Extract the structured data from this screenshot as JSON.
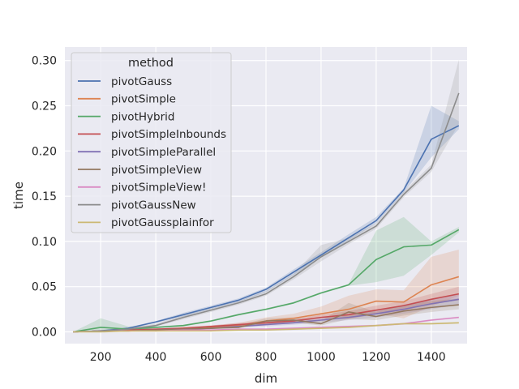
{
  "chart_data": {
    "type": "line",
    "xlabel": "dim",
    "ylabel": "time",
    "xlim": [
      70,
      1530
    ],
    "ylim": [
      -0.013,
      0.315
    ],
    "xticks": [
      200,
      400,
      600,
      800,
      1000,
      1200,
      1400
    ],
    "yticks": [
      0.0,
      0.05,
      0.1,
      0.15,
      0.2,
      0.25,
      0.3
    ],
    "ytick_labels": [
      "0.00",
      "0.05",
      "0.10",
      "0.15",
      "0.20",
      "0.25",
      "0.30"
    ],
    "grid": true,
    "legend": {
      "title": "method",
      "placement": "top-left"
    },
    "x": [
      100,
      200,
      300,
      400,
      500,
      600,
      700,
      800,
      900,
      1000,
      1100,
      1200,
      1300,
      1400,
      1500
    ],
    "series": [
      {
        "name": "pivotGauss",
        "color": "#4c72b0",
        "values": [
          0.0,
          0.001,
          0.004,
          0.011,
          0.019,
          0.027,
          0.035,
          0.047,
          0.066,
          0.085,
          0.104,
          0.123,
          0.157,
          0.213,
          0.228
        ],
        "lower": [
          0.0,
          0.001,
          0.003,
          0.01,
          0.017,
          0.025,
          0.033,
          0.044,
          0.063,
          0.082,
          0.101,
          0.12,
          0.154,
          0.193,
          0.224
        ],
        "upper": [
          0.0,
          0.002,
          0.005,
          0.012,
          0.021,
          0.029,
          0.037,
          0.049,
          0.069,
          0.088,
          0.108,
          0.127,
          0.159,
          0.25,
          0.233
        ]
      },
      {
        "name": "pivotSimple",
        "color": "#dd8452",
        "values": [
          0.0,
          0.001,
          0.001,
          0.002,
          0.004,
          0.005,
          0.007,
          0.012,
          0.015,
          0.02,
          0.025,
          0.034,
          0.033,
          0.052,
          0.061
        ],
        "lower": [
          0.0,
          0.0,
          0.001,
          0.001,
          0.003,
          0.004,
          0.005,
          0.009,
          0.011,
          0.015,
          0.014,
          0.02,
          0.015,
          0.028,
          0.04
        ],
        "upper": [
          0.0,
          0.002,
          0.002,
          0.003,
          0.006,
          0.007,
          0.01,
          0.016,
          0.02,
          0.028,
          0.04,
          0.047,
          0.046,
          0.083,
          0.091
        ]
      },
      {
        "name": "pivotHybrid",
        "color": "#55a868",
        "values": [
          0.0,
          0.005,
          0.003,
          0.005,
          0.007,
          0.012,
          0.019,
          0.025,
          0.032,
          0.043,
          0.052,
          0.08,
          0.094,
          0.096,
          0.113
        ],
        "lower": [
          0.0,
          0.0,
          0.002,
          0.004,
          0.006,
          0.011,
          0.018,
          0.024,
          0.031,
          0.042,
          0.051,
          0.055,
          0.062,
          0.085,
          0.11
        ],
        "upper": [
          0.0,
          0.015,
          0.006,
          0.006,
          0.008,
          0.013,
          0.02,
          0.026,
          0.033,
          0.044,
          0.053,
          0.112,
          0.127,
          0.1,
          0.116
        ]
      },
      {
        "name": "pivotSimpleInbounds",
        "color": "#c44e52",
        "values": [
          0.0,
          0.001,
          0.002,
          0.003,
          0.004,
          0.006,
          0.008,
          0.01,
          0.012,
          0.016,
          0.019,
          0.024,
          0.029,
          0.036,
          0.042
        ],
        "lower": [
          0.0,
          0.001,
          0.001,
          0.002,
          0.003,
          0.005,
          0.006,
          0.008,
          0.01,
          0.013,
          0.015,
          0.019,
          0.024,
          0.031,
          0.035
        ],
        "upper": [
          0.0,
          0.002,
          0.003,
          0.004,
          0.005,
          0.007,
          0.01,
          0.012,
          0.014,
          0.019,
          0.023,
          0.029,
          0.034,
          0.042,
          0.05
        ]
      },
      {
        "name": "pivotSimpleParallel",
        "color": "#8172b3",
        "values": [
          0.0,
          0.001,
          0.001,
          0.002,
          0.003,
          0.004,
          0.006,
          0.008,
          0.01,
          0.013,
          0.016,
          0.02,
          0.025,
          0.031,
          0.036
        ],
        "lower": [
          0.0,
          0.0,
          0.001,
          0.001,
          0.002,
          0.003,
          0.005,
          0.006,
          0.008,
          0.01,
          0.013,
          0.016,
          0.02,
          0.025,
          0.03
        ],
        "upper": [
          0.0,
          0.002,
          0.002,
          0.003,
          0.004,
          0.005,
          0.007,
          0.01,
          0.012,
          0.016,
          0.019,
          0.024,
          0.03,
          0.037,
          0.042
        ]
      },
      {
        "name": "pivotSimpleView",
        "color": "#937860",
        "values": [
          0.0,
          0.001,
          0.001,
          0.002,
          0.003,
          0.004,
          0.005,
          0.012,
          0.013,
          0.009,
          0.022,
          0.017,
          0.023,
          0.027,
          0.03
        ],
        "lower": [
          0.0,
          0.0,
          0.001,
          0.001,
          0.002,
          0.003,
          0.004,
          0.009,
          0.01,
          0.007,
          0.014,
          0.013,
          0.018,
          0.022,
          0.025
        ],
        "upper": [
          0.0,
          0.002,
          0.002,
          0.003,
          0.004,
          0.005,
          0.007,
          0.015,
          0.016,
          0.012,
          0.032,
          0.022,
          0.03,
          0.034,
          0.037
        ]
      },
      {
        "name": "pivotSimpleView!",
        "color": "#da8bc3",
        "values": [
          0.0,
          0.001,
          0.001,
          0.001,
          0.002,
          0.002,
          0.003,
          0.003,
          0.004,
          0.005,
          0.006,
          0.007,
          0.009,
          0.013,
          0.016
        ],
        "lower": [
          0.0,
          0.0,
          0.0,
          0.001,
          0.001,
          0.002,
          0.002,
          0.003,
          0.003,
          0.004,
          0.005,
          0.006,
          0.008,
          0.012,
          0.015
        ],
        "upper": [
          0.0,
          0.001,
          0.001,
          0.002,
          0.002,
          0.003,
          0.003,
          0.004,
          0.005,
          0.006,
          0.007,
          0.008,
          0.01,
          0.014,
          0.017
        ]
      },
      {
        "name": "pivotGaussNew",
        "color": "#8c8c8c",
        "values": [
          0.0,
          0.001,
          0.003,
          0.007,
          0.016,
          0.024,
          0.032,
          0.042,
          0.061,
          0.083,
          0.1,
          0.117,
          0.152,
          0.181,
          0.264
        ],
        "lower": [
          0.0,
          0.0,
          0.002,
          0.006,
          0.014,
          0.022,
          0.03,
          0.04,
          0.058,
          0.078,
          0.097,
          0.114,
          0.149,
          0.177,
          0.23
        ],
        "upper": [
          0.0,
          0.002,
          0.004,
          0.009,
          0.018,
          0.026,
          0.034,
          0.045,
          0.064,
          0.096,
          0.104,
          0.12,
          0.155,
          0.185,
          0.301
        ]
      },
      {
        "name": "pivotGaussplainfor",
        "color": "#ccb974",
        "values": [
          0.0,
          0.0,
          0.001,
          0.001,
          0.001,
          0.001,
          0.002,
          0.002,
          0.003,
          0.004,
          0.005,
          0.007,
          0.009,
          0.009,
          0.01
        ],
        "lower": [
          0.0,
          0.0,
          0.0,
          0.0,
          0.001,
          0.001,
          0.001,
          0.002,
          0.002,
          0.003,
          0.004,
          0.006,
          0.008,
          0.008,
          0.009
        ],
        "upper": [
          0.0,
          0.001,
          0.001,
          0.001,
          0.002,
          0.002,
          0.002,
          0.003,
          0.004,
          0.005,
          0.006,
          0.008,
          0.01,
          0.01,
          0.011
        ]
      }
    ]
  }
}
